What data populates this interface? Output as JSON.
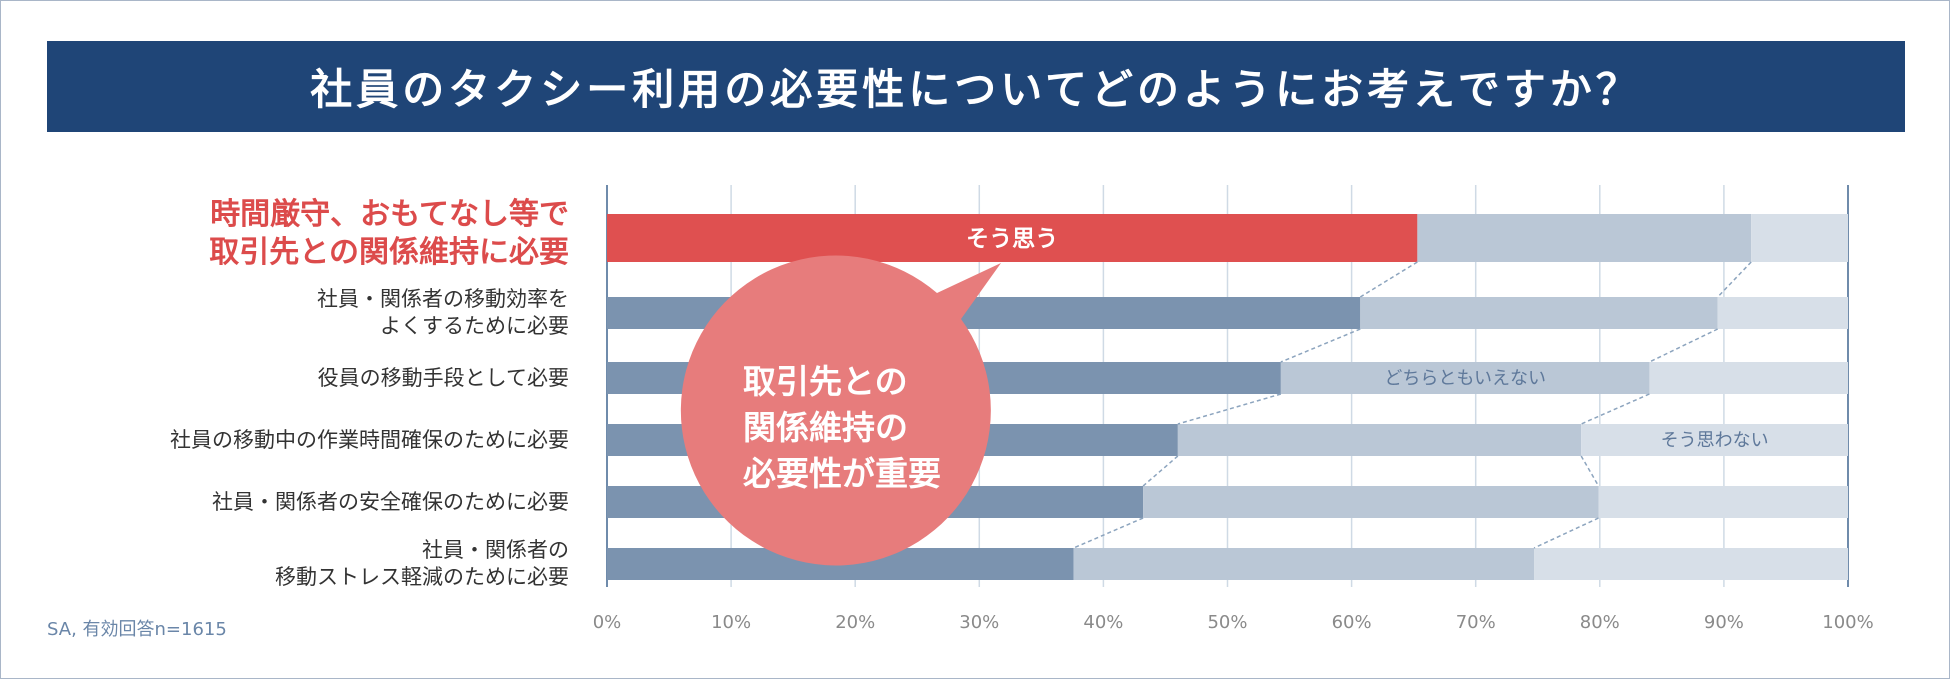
{
  "title": "社員のタクシー利用の必要性についてどのようにお考えですか？",
  "note": "SA, 有効回答n=1615",
  "bubble": {
    "text": "取引先との\n関係維持の\n必要性が重要"
  },
  "colors": {
    "highlight": "#df5050",
    "agree": "#7b93af",
    "neutral": "#bac7d6",
    "disagree": "#d7dfe8",
    "bubble": "#e77c7c",
    "title_bg": "#1f4577",
    "highlight_label": "#dc4b4b"
  },
  "chart_data": {
    "type": "bar",
    "orientation": "horizontal",
    "stacked": true,
    "title": "社員のタクシー利用の必要性についてどのようにお考えですか？",
    "categories": [
      "時間厳守、おもてなし等で\n取引先との関係維持に必要",
      "社員・関係者の移動効率を\nよくするために必要",
      "役員の移動手段として必要",
      "社員の移動中の作業時間確保のために必要",
      "社員・関係者の安全確保のために必要",
      "社員・関係者の\n移動ストレス軽減のために必要"
    ],
    "highlight_index": 0,
    "series": [
      {
        "name": "そう思う",
        "values": [
          65.3,
          60.7,
          54.3,
          46.0,
          43.2,
          37.6
        ]
      },
      {
        "name": "どちらともいえない",
        "values": [
          26.9,
          28.8,
          29.7,
          32.5,
          36.7,
          37.1
        ]
      },
      {
        "name": "そう思わない",
        "values": [
          7.8,
          10.5,
          16.0,
          21.5,
          20.1,
          25.3
        ]
      }
    ],
    "xlim": [
      0,
      100
    ],
    "xticks": [
      "0%",
      "10%",
      "20%",
      "30%",
      "40%",
      "50%",
      "60%",
      "70%",
      "80%",
      "90%",
      "100%"
    ],
    "grid": true,
    "series_labels_shown_on_rows": [
      0,
      2,
      3
    ]
  }
}
